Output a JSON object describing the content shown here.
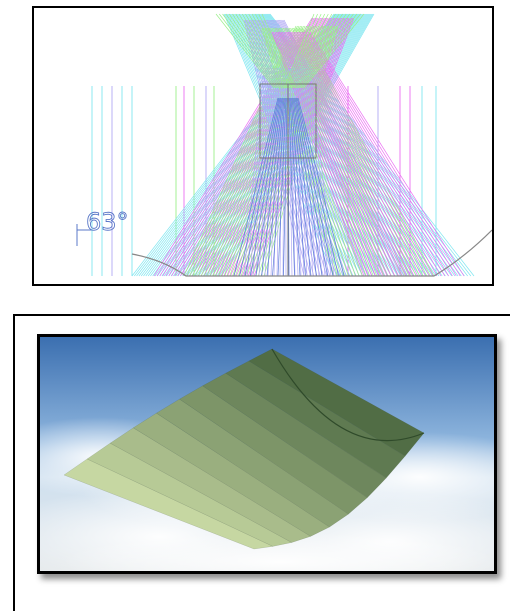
{
  "top_figure": {
    "angle_label": "63°",
    "colors": {
      "cyan": "#7fe6f0",
      "green": "#9bef8a",
      "magenta": "#ea6ef2",
      "lavender": "#b0a8f4",
      "outline": "#8a8a8a",
      "blue": "#5a7dd8"
    }
  },
  "bottom_figure": {
    "colors": {
      "sky_top": "#3b6fb0",
      "sky_mid": "#8fb6de",
      "sky_low": "#cfe0ef",
      "cloud": "#e9ecec",
      "trough_light": "#c6d7a2",
      "trough_dark": "#3c5a35"
    }
  }
}
